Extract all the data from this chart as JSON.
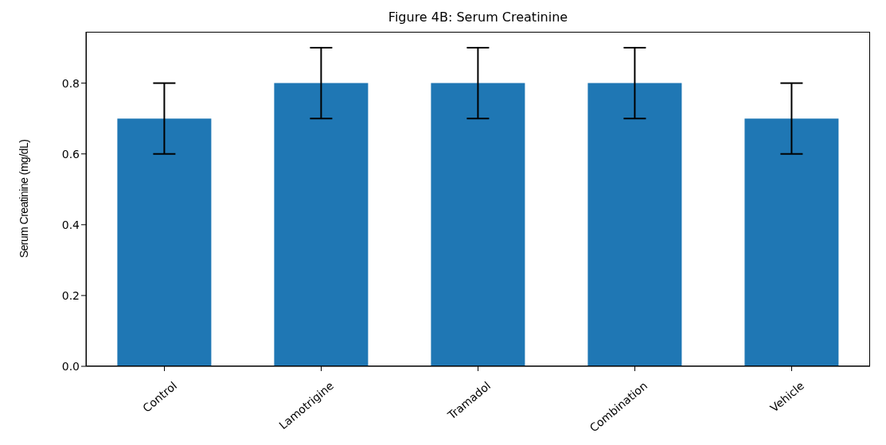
{
  "chart_data": {
    "type": "bar",
    "title": "Figure 4B: Serum Creatinine",
    "ylabel": "Serum Creatinine (mg/dL)",
    "categories": [
      "Control",
      "Lamotrigine",
      "Tramadol",
      "Combination",
      "Vehicle"
    ],
    "values": [
      0.7,
      0.8,
      0.8,
      0.8,
      0.7
    ],
    "errors": [
      0.1,
      0.1,
      0.1,
      0.1,
      0.1
    ],
    "color": "#1f77b4",
    "ylim": [
      0,
      0.945
    ],
    "yticks": [
      {
        "value": 0,
        "label": "0.0"
      },
      {
        "value": 0.2,
        "label": "0.2"
      },
      {
        "value": 0.4,
        "label": "0.4"
      },
      {
        "value": 0.6,
        "label": "0.6"
      },
      {
        "value": 0.8,
        "label": "0.8"
      }
    ],
    "grid": false
  }
}
